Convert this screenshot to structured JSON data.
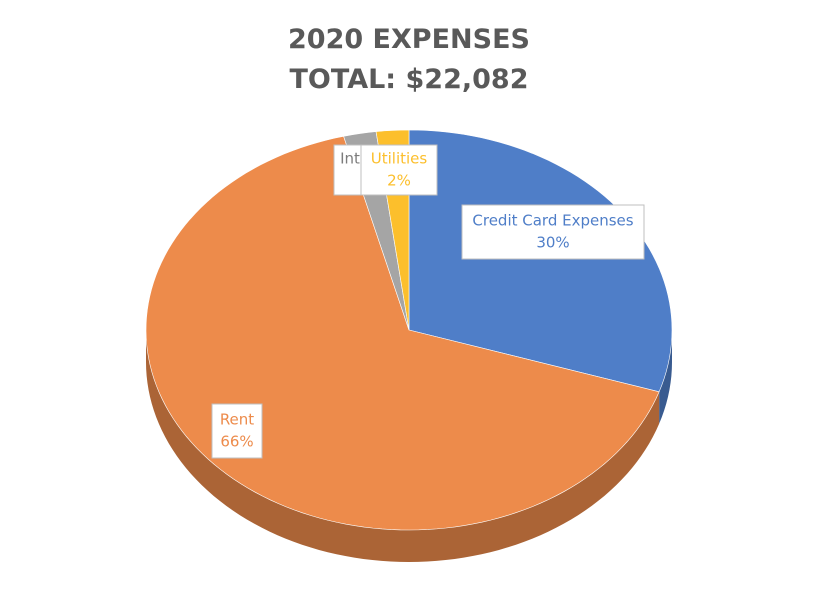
{
  "chart_data": {
    "type": "pie",
    "title": "2020 EXPENSES",
    "subtitle": "TOTAL: $22,082",
    "categories": [
      "Credit Card Expenses",
      "Rent",
      "Int",
      "Utilities"
    ],
    "values": [
      30,
      66,
      2,
      2
    ],
    "value_labels": [
      "30%",
      "66%",
      null,
      "2%"
    ],
    "colors": [
      "#4f7ec8",
      "#ed8b4b",
      "#a5a5a5",
      "#fcbf2c"
    ]
  }
}
